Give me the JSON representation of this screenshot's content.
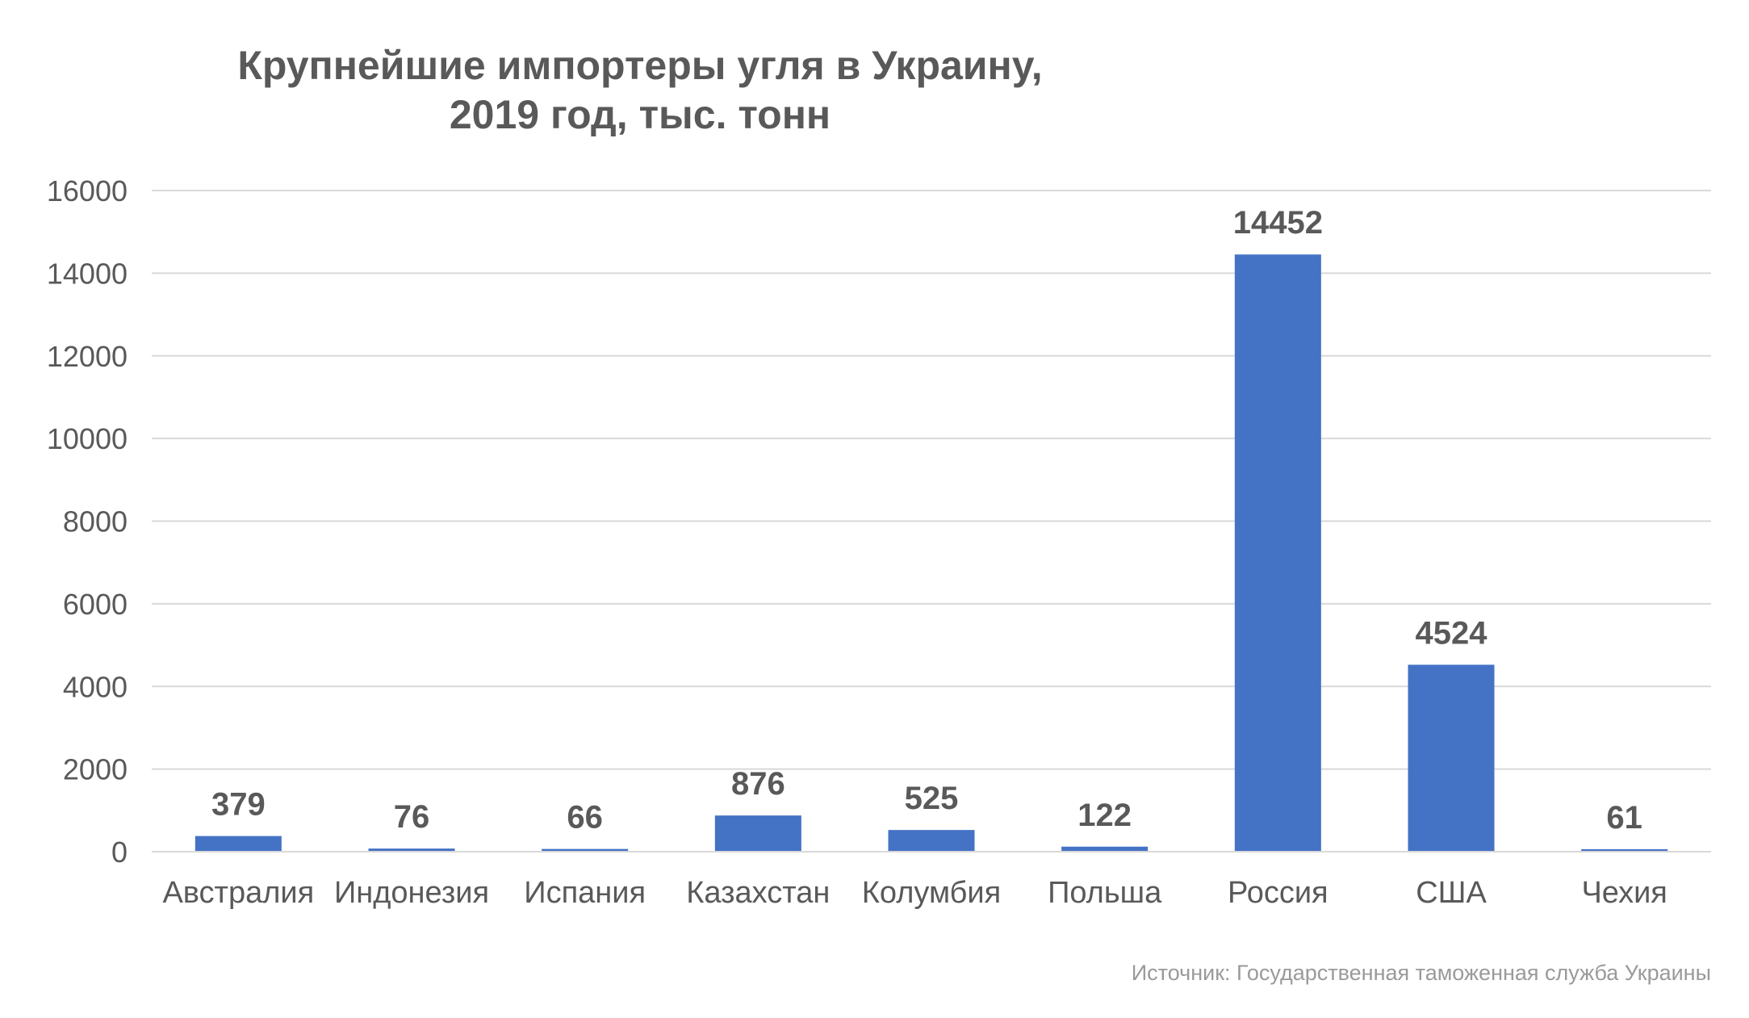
{
  "chart_data": {
    "type": "bar",
    "title_lines": [
      "Крупнейшие импортеры угля в Украину,",
      "2019 год, тыс. тонн"
    ],
    "categories": [
      "Австралия",
      "Индонезия",
      "Испания",
      "Казахстан",
      "Колумбия",
      "Польша",
      "Россия",
      "США",
      "Чехия"
    ],
    "values": [
      379,
      76,
      66,
      876,
      525,
      122,
      14452,
      4524,
      61
    ],
    "data_labels": [
      "379",
      "76",
      "66",
      "876",
      "525",
      "122",
      "14452",
      "4524",
      "61"
    ],
    "ylim": [
      0,
      16000
    ],
    "yticks": [
      0,
      2000,
      4000,
      6000,
      8000,
      10000,
      12000,
      14000,
      16000
    ],
    "ytick_labels": [
      "0",
      "2000",
      "4000",
      "6000",
      "8000",
      "10000",
      "12000",
      "14000",
      "16000"
    ],
    "xlabel": "",
    "ylabel": "",
    "grid": true,
    "legend": "none",
    "bar_color": "#4472C4",
    "grid_color": "#d9d9d9"
  },
  "source": "Источник: Государственная таможенная служба Украины"
}
